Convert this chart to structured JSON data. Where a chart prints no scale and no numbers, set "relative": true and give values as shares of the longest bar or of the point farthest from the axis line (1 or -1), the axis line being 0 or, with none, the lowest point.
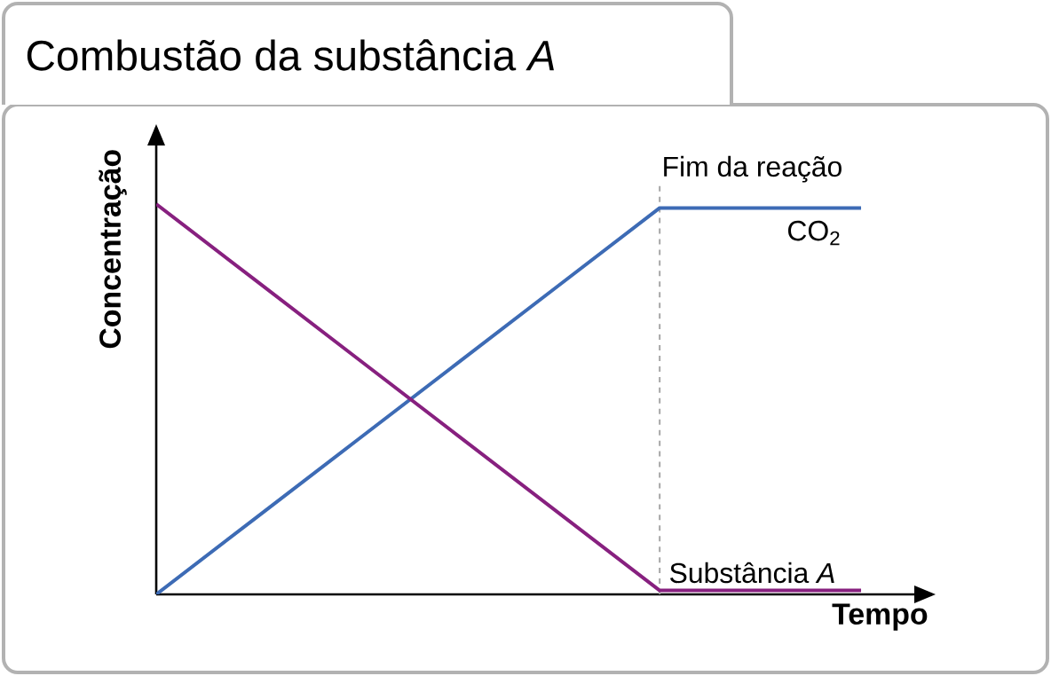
{
  "chart_data": {
    "type": "line",
    "title": "Combustão da substância *A*",
    "xlabel": "Tempo",
    "ylabel": "Concentração",
    "relative": true,
    "categories": [
      null,
      null,
      null,
      null,
      null,
      null,
      null,
      null
    ],
    "series": [
      {
        "name": "CO$_{2}$",
        "color": "#3d6bb5",
        "values": [
          0,
          0.198,
          0.396,
          0.594,
          0.792,
          0.99,
          0.99,
          0.99
        ]
      },
      {
        "name": "Substância *A*",
        "color": "#87207f",
        "values": [
          1,
          0.802,
          0.604,
          0.406,
          0.208,
          0.01,
          0.01,
          0.01
        ]
      }
    ],
    "annotations": [
      "Fim da reação"
    ]
  }
}
